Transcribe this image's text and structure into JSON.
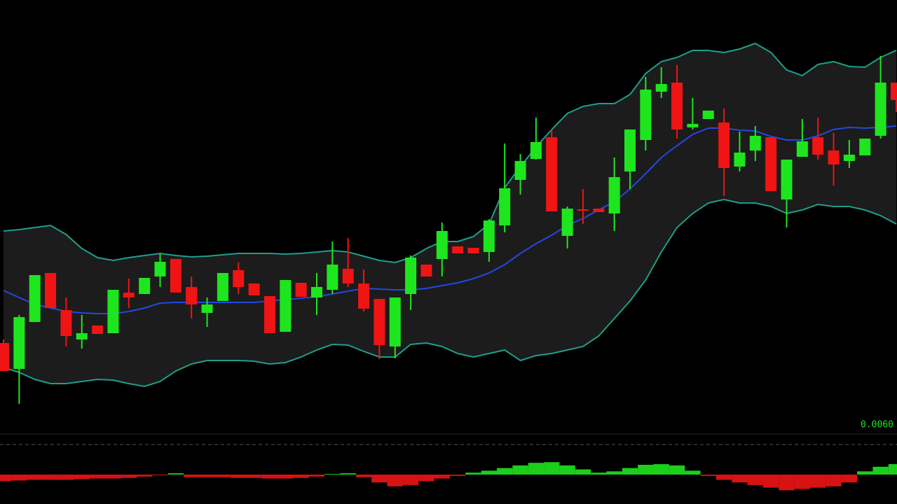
{
  "chart_data": {
    "type": "candlestick",
    "ylim": [
      0,
      600
    ],
    "up_color": "#1ee61e",
    "down_color": "#f01414",
    "open": [
      110,
      73,
      140,
      210,
      157,
      115,
      135,
      124,
      182,
      180,
      205,
      230,
      190,
      153,
      170,
      214,
      195,
      177,
      126,
      196,
      175,
      186,
      216,
      195,
      173,
      105,
      180,
      222,
      230,
      248,
      246,
      240,
      278,
      343,
      373,
      404,
      263,
      301,
      302,
      295,
      355,
      400,
      469,
      482,
      418,
      430,
      425,
      362,
      385,
      404,
      315,
      376,
      404,
      385,
      370,
      378,
      406,
      482
    ],
    "high": [
      115,
      150,
      207,
      210,
      175,
      150,
      135,
      186,
      202,
      203,
      238,
      230,
      205,
      175,
      210,
      225,
      195,
      177,
      200,
      196,
      210,
      255,
      260,
      215,
      173,
      175,
      235,
      222,
      282,
      248,
      246,
      287,
      395,
      380,
      432,
      415,
      305,
      330,
      302,
      375,
      415,
      490,
      504,
      507,
      460,
      442,
      445,
      412,
      420,
      404,
      372,
      430,
      432,
      410,
      400,
      402,
      520,
      482
    ],
    "low": [
      70,
      23,
      140,
      160,
      105,
      102,
      123,
      124,
      160,
      180,
      190,
      182,
      145,
      133,
      170,
      180,
      178,
      124,
      126,
      176,
      150,
      180,
      190,
      155,
      87,
      88,
      157,
      205,
      205,
      238,
      238,
      226,
      268,
      322,
      372,
      298,
      245,
      280,
      297,
      270,
      330,
      385,
      460,
      402,
      415,
      430,
      320,
      355,
      370,
      327,
      275,
      376,
      372,
      335,
      360,
      378,
      402,
      440
    ],
    "close": [
      70,
      147,
      207,
      160,
      120,
      124,
      123,
      186,
      175,
      203,
      226,
      182,
      165,
      165,
      210,
      190,
      178,
      124,
      200,
      176,
      190,
      222,
      195,
      159,
      107,
      175,
      232,
      205,
      270,
      238,
      238,
      285,
      331,
      370,
      397,
      298,
      302,
      299,
      297,
      347,
      415,
      472,
      480,
      415,
      423,
      442,
      360,
      382,
      406,
      327,
      372,
      398,
      379,
      365,
      379,
      402,
      482,
      457
    ],
    "bands": {
      "upper_color": "#1f9e8a",
      "middle_color": "#2448e0",
      "fill": "#1c1c1c",
      "upper": [
        270,
        272,
        275,
        278,
        265,
        245,
        232,
        228,
        232,
        235,
        238,
        235,
        233,
        234,
        236,
        238,
        238,
        238,
        237,
        238,
        240,
        242,
        240,
        234,
        228,
        225,
        232,
        245,
        255,
        255,
        262,
        280,
        332,
        362,
        390,
        415,
        438,
        448,
        452,
        452,
        465,
        495,
        512,
        518,
        528,
        528,
        525,
        530,
        538,
        525,
        500,
        492,
        508,
        512,
        505,
        504,
        518,
        528
      ],
      "middle": [
        185,
        175,
        165,
        160,
        155,
        153,
        152,
        152,
        155,
        160,
        167,
        168,
        168,
        168,
        168,
        168,
        168,
        170,
        172,
        174,
        176,
        180,
        184,
        188,
        187,
        186,
        186,
        188,
        192,
        196,
        202,
        210,
        222,
        238,
        252,
        264,
        278,
        288,
        300,
        312,
        330,
        352,
        375,
        392,
        408,
        417,
        417,
        414,
        413,
        405,
        400,
        400,
        406,
        415,
        418,
        417,
        418,
        420
      ],
      "lower": [
        75,
        68,
        58,
        52,
        52,
        55,
        58,
        57,
        52,
        48,
        55,
        70,
        80,
        85,
        85,
        85,
        84,
        80,
        82,
        90,
        100,
        108,
        107,
        98,
        90,
        90,
        108,
        110,
        105,
        95,
        90,
        95,
        100,
        85,
        92,
        95,
        100,
        105,
        120,
        145,
        170,
        200,
        240,
        275,
        295,
        310,
        315,
        310,
        310,
        305,
        295,
        300,
        308,
        305,
        305,
        300,
        292,
        280
      ]
    },
    "oscillator": {
      "label": "0.0060",
      "ylim": [
        -30,
        30
      ],
      "values": [
        -10,
        -9,
        -8,
        -8,
        -8,
        -7,
        -6,
        -6,
        -5,
        -3,
        -1,
        2,
        -4,
        -4,
        -4,
        -5,
        -5,
        -6,
        -6,
        -5,
        -3,
        1,
        2,
        -4,
        -12,
        -18,
        -16,
        -10,
        -6,
        -2,
        3,
        6,
        10,
        14,
        18,
        19,
        14,
        8,
        3,
        5,
        10,
        15,
        16,
        14,
        6,
        -2,
        -8,
        -12,
        -16,
        -20,
        -24,
        -22,
        -20,
        -18,
        -12,
        5,
        12,
        16
      ]
    }
  }
}
